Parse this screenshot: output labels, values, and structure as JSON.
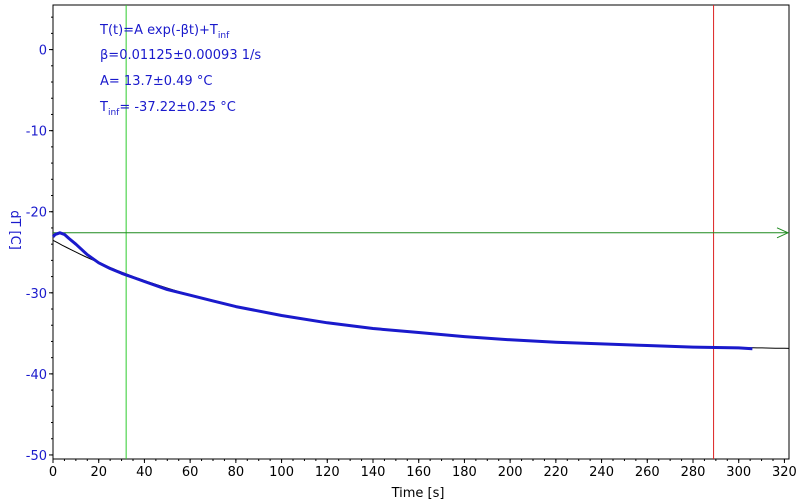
{
  "chart_data": {
    "type": "line",
    "xlabel": "Time [s]",
    "ylabel": "dT [C]",
    "xlim": [
      0,
      322
    ],
    "ylim": [
      -50.5,
      5.5
    ],
    "xticks": [
      0,
      20,
      40,
      60,
      80,
      100,
      120,
      140,
      160,
      180,
      200,
      220,
      240,
      260,
      280,
      300,
      320
    ],
    "yticks": [
      0,
      -10,
      -20,
      -30,
      -40,
      -50
    ],
    "grid": false,
    "annotations": [
      {
        "text": "T(t)=A exp(-βt)+T",
        "sub": "inf"
      },
      {
        "text": "β=0.01125±0.00093 1/s",
        "sub": ""
      },
      {
        "text": "A= 13.7±0.49 °C",
        "sub": ""
      },
      {
        "prefix": "T",
        "sub": "inf",
        "text": "= -37.22±0.25 °C"
      }
    ],
    "cursors": {
      "vertical_green_x": 32,
      "vertical_red_x": 289,
      "horizontal_green_y": -22.6
    },
    "series": [
      {
        "color": "#1a1acc",
        "x": [
          0,
          1,
          3,
          5,
          7,
          10,
          15,
          20,
          25,
          30,
          35,
          40,
          50,
          60,
          70,
          80,
          100,
          120,
          140,
          160,
          180,
          200,
          220,
          240,
          260,
          280,
          300,
          306
        ],
        "y": [
          -23.1,
          -22.8,
          -22.6,
          -22.8,
          -23.3,
          -24.0,
          -25.3,
          -26.3,
          -27.0,
          -27.6,
          -28.1,
          -28.6,
          -29.6,
          -30.3,
          -31.0,
          -31.7,
          -32.8,
          -33.7,
          -34.4,
          -34.9,
          -35.4,
          -35.8,
          -36.1,
          -36.3,
          -36.5,
          -36.7,
          -36.8,
          -36.9
        ]
      },
      {
        "color": "#000000",
        "fit": {
          "A": 13.7,
          "beta": 0.01125,
          "Tinf": -37.22
        },
        "x_range": [
          0,
          322
        ]
      }
    ]
  }
}
